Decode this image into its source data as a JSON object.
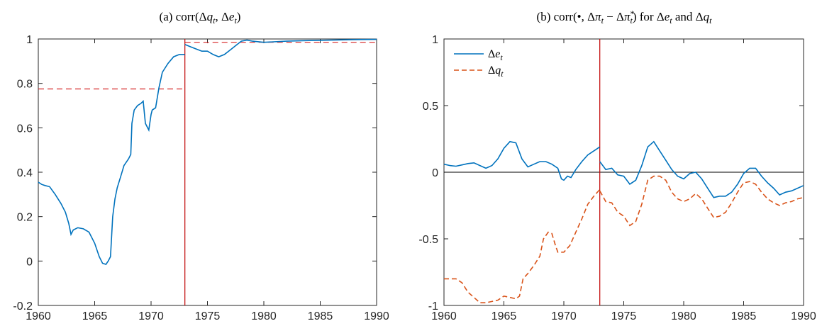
{
  "chart_data": [
    {
      "type": "line",
      "title": "(a) corr(Δq_t, Δe_t)",
      "xlabel": "",
      "ylabel": "",
      "xlim": [
        1960,
        1990
      ],
      "ylim": [
        -0.2,
        1
      ],
      "xticks": [
        "1960",
        "1965",
        "1970",
        "1975",
        "1980",
        "1985",
        "1990"
      ],
      "yticks": [
        "-0.2",
        "0",
        "0.2",
        "0.4",
        "0.6",
        "0.8",
        "1"
      ],
      "grid": false,
      "colors": {
        "line": "#0072BD",
        "reference": "#D62728",
        "break": "#C00000"
      },
      "vertical_line_x": 1973,
      "reference_lines": [
        {
          "x": [
            1960,
            1973
          ],
          "y": 0.775
        },
        {
          "x": [
            1973,
            1990
          ],
          "y": 0.985
        }
      ],
      "series": [
        {
          "x": [
            1960,
            1960.3,
            1960.6,
            1961,
            1961.5,
            1962,
            1962.4,
            1962.7,
            1962.9,
            1963.1,
            1963.5,
            1964,
            1964.5,
            1965,
            1965.4,
            1965.7,
            1966,
            1966.2,
            1966.4,
            1966.6,
            1966.8,
            1967,
            1967.3,
            1967.6,
            1968,
            1968.2,
            1968.3,
            1968.5,
            1968.8,
            1969.1,
            1969.3,
            1969.5,
            1969.8,
            1970,
            1970.1,
            1970.4,
            1970.7,
            1971,
            1971.5,
            1972,
            1972.5,
            1973
          ],
          "y": [
            0.355,
            0.345,
            0.34,
            0.335,
            0.3,
            0.26,
            0.22,
            0.17,
            0.12,
            0.14,
            0.15,
            0.145,
            0.13,
            0.08,
            0.02,
            -0.01,
            -0.015,
            0.0,
            0.02,
            0.2,
            0.28,
            0.33,
            0.38,
            0.43,
            0.46,
            0.48,
            0.62,
            0.68,
            0.7,
            0.71,
            0.72,
            0.62,
            0.59,
            0.66,
            0.68,
            0.69,
            0.78,
            0.85,
            0.89,
            0.92,
            0.93,
            0.93
          ]
        },
        {
          "x": [
            1973,
            1973.5,
            1974,
            1974.5,
            1975,
            1975.5,
            1976,
            1976.5,
            1977,
            1977.5,
            1978,
            1978.5,
            1979,
            1980,
            1982,
            1984,
            1986,
            1988,
            1990
          ],
          "y": [
            0.975,
            0.965,
            0.955,
            0.945,
            0.945,
            0.93,
            0.92,
            0.93,
            0.95,
            0.97,
            0.99,
            0.995,
            0.99,
            0.985,
            0.99,
            0.993,
            0.995,
            0.997,
            0.998
          ]
        }
      ]
    },
    {
      "type": "line",
      "title": "(b) corr(•, Δπ_t − Δπ*_t) for Δe_t and Δq_t",
      "xlabel": "",
      "ylabel": "",
      "xlim": [
        1960,
        1990
      ],
      "ylim": [
        -1,
        1
      ],
      "xticks": [
        "1960",
        "1965",
        "1970",
        "1975",
        "1980",
        "1985",
        "1990"
      ],
      "yticks": [
        "-1",
        "-0.5",
        "0",
        "0.5",
        "1"
      ],
      "grid": false,
      "legend_position": "top-left",
      "vertical_line_x": 1973,
      "zero_line": true,
      "series": [
        {
          "name": "Δe_t",
          "color": "#0072BD",
          "dash": "solid",
          "segments": [
            {
              "x": [
                1960,
                1960.5,
                1961,
                1961.5,
                1962,
                1962.5,
                1963,
                1963.5,
                1964,
                1964.5,
                1965,
                1965.5,
                1966,
                1966.5,
                1967,
                1967.5,
                1968,
                1968.5,
                1969,
                1969.5,
                1969.8,
                1970,
                1970.3,
                1970.6,
                1971,
                1971.5,
                1972,
                1972.5,
                1973
              ],
              "y": [
                0.06,
                0.05,
                0.045,
                0.055,
                0.065,
                0.07,
                0.05,
                0.03,
                0.05,
                0.1,
                0.18,
                0.23,
                0.22,
                0.1,
                0.04,
                0.06,
                0.08,
                0.08,
                0.06,
                0.03,
                -0.05,
                -0.06,
                -0.03,
                -0.04,
                0.02,
                0.08,
                0.13,
                0.16,
                0.19
              ]
            },
            {
              "x": [
                1973,
                1973.5,
                1974,
                1974.5,
                1975,
                1975.5,
                1976,
                1976.5,
                1977,
                1977.5,
                1978,
                1978.5,
                1979,
                1979.5,
                1980,
                1980.5,
                1981,
                1981.5,
                1982,
                1982.5,
                1983,
                1983.5,
                1984,
                1984.5,
                1985,
                1985.5,
                1986,
                1986.5,
                1987,
                1987.5,
                1988,
                1988.5,
                1989,
                1989.5,
                1990
              ],
              "y": [
                0.08,
                0.02,
                0.03,
                -0.02,
                -0.03,
                -0.09,
                -0.06,
                0.05,
                0.19,
                0.23,
                0.16,
                0.09,
                0.02,
                -0.03,
                -0.05,
                -0.01,
                0.0,
                -0.05,
                -0.12,
                -0.19,
                -0.18,
                -0.18,
                -0.15,
                -0.09,
                -0.01,
                0.03,
                0.03,
                -0.03,
                -0.08,
                -0.12,
                -0.17,
                -0.15,
                -0.14,
                -0.12,
                -0.1
              ]
            }
          ]
        },
        {
          "name": "Δq_t",
          "color": "#D95319",
          "dash": "dashed",
          "segments": [
            {
              "x": [
                1960,
                1960.5,
                1961,
                1961.5,
                1962,
                1962.5,
                1963,
                1963.5,
                1964,
                1964.5,
                1965,
                1965.5,
                1966,
                1966.3,
                1966.6,
                1967,
                1967.5,
                1968,
                1968.3,
                1968.7,
                1969,
                1969.3,
                1969.5,
                1969.8,
                1970,
                1970.5,
                1971,
                1971.5,
                1972,
                1972.5,
                1973
              ],
              "y": [
                -0.8,
                -0.8,
                -0.8,
                -0.83,
                -0.9,
                -0.94,
                -0.98,
                -0.98,
                -0.97,
                -0.96,
                -0.93,
                -0.94,
                -0.95,
                -0.93,
                -0.8,
                -0.76,
                -0.7,
                -0.63,
                -0.5,
                -0.45,
                -0.46,
                -0.55,
                -0.6,
                -0.6,
                -0.6,
                -0.55,
                -0.45,
                -0.35,
                -0.24,
                -0.18,
                -0.13
              ]
            },
            {
              "x": [
                1973,
                1973.5,
                1974,
                1974.5,
                1975,
                1975.5,
                1976,
                1976.5,
                1977,
                1977.5,
                1978,
                1978.5,
                1979,
                1979.5,
                1980,
                1980.5,
                1981,
                1981.5,
                1982,
                1982.5,
                1983,
                1983.5,
                1984,
                1984.5,
                1985,
                1985.5,
                1986,
                1986.5,
                1987,
                1987.5,
                1988,
                1988.5,
                1989,
                1989.5,
                1990
              ],
              "y": [
                -0.14,
                -0.22,
                -0.23,
                -0.3,
                -0.33,
                -0.4,
                -0.37,
                -0.24,
                -0.06,
                -0.03,
                -0.03,
                -0.06,
                -0.15,
                -0.2,
                -0.22,
                -0.2,
                -0.16,
                -0.2,
                -0.27,
                -0.34,
                -0.33,
                -0.3,
                -0.23,
                -0.15,
                -0.08,
                -0.07,
                -0.09,
                -0.15,
                -0.2,
                -0.23,
                -0.25,
                -0.23,
                -0.22,
                -0.2,
                -0.19
              ]
            }
          ]
        }
      ]
    }
  ]
}
